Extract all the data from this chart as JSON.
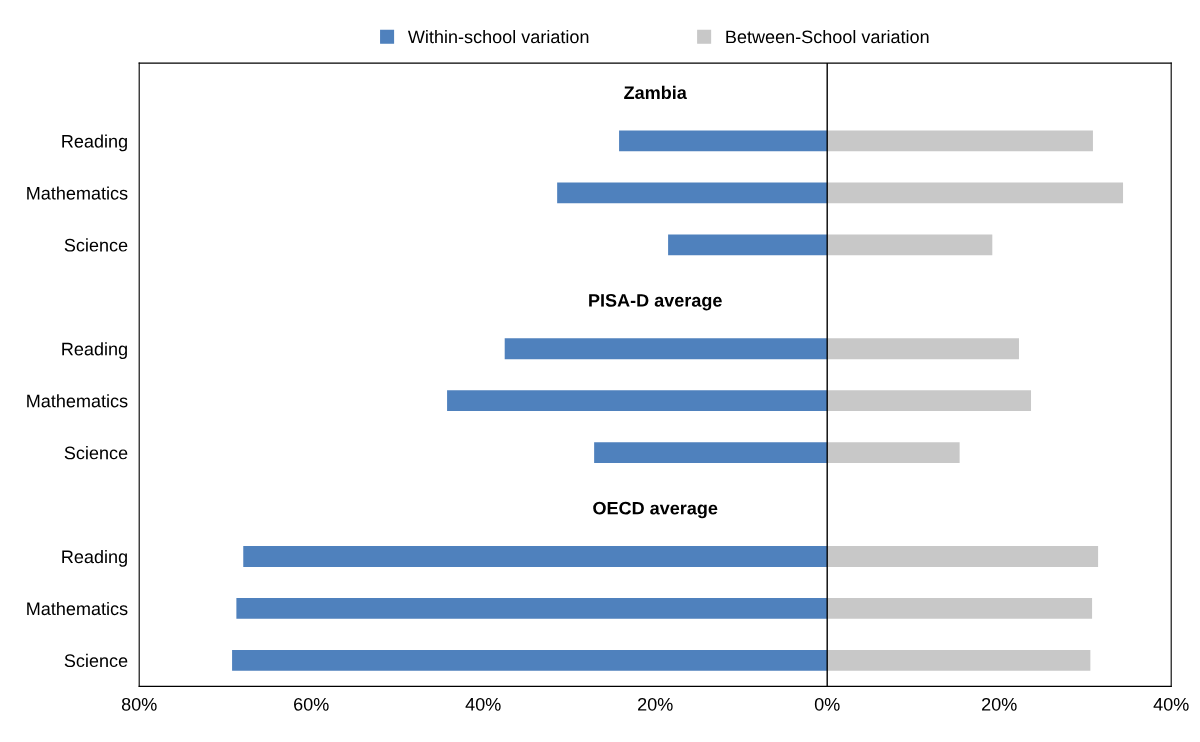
{
  "chart_data": {
    "type": "bar",
    "orientation": "horizontal",
    "stacked": true,
    "ref_lines": [
      {
        "axis": "x",
        "value": 0,
        "color": "#000000"
      }
    ],
    "categories": [
      null,
      "Reading",
      "Mathematics",
      "Science",
      null,
      "Reading",
      "Mathematics",
      "Science",
      null,
      "Reading",
      "Mathematics",
      "Science"
    ],
    "series": [
      {
        "name": "Within-school variation",
        "color": "#4f81bd",
        "values": [
          null,
          -24.2,
          -31.4,
          -18.5,
          null,
          -37.5,
          -44.2,
          -27.1,
          null,
          -67.9,
          -68.7,
          -69.2
        ]
      },
      {
        "name": "Between-School variation",
        "color": "#c8c8c8",
        "values": [
          null,
          30.9,
          34.4,
          19.2,
          null,
          22.3,
          23.7,
          15.4,
          null,
          31.5,
          30.8,
          30.6
        ]
      }
    ],
    "annotations": [
      "Zambia",
      "PISA-D average",
      "OECD average"
    ],
    "xlim": [
      -80,
      40
    ],
    "xticks": [
      {
        "value": -80,
        "label": "80%"
      },
      {
        "value": -60,
        "label": "60%"
      },
      {
        "value": -40,
        "label": "40%"
      },
      {
        "value": -20,
        "label": "20%"
      },
      {
        "value": 0,
        "label": "0%"
      },
      {
        "value": 20,
        "label": "20%"
      },
      {
        "value": 40,
        "label": "40%"
      }
    ],
    "legend": "top",
    "grid": false
  }
}
